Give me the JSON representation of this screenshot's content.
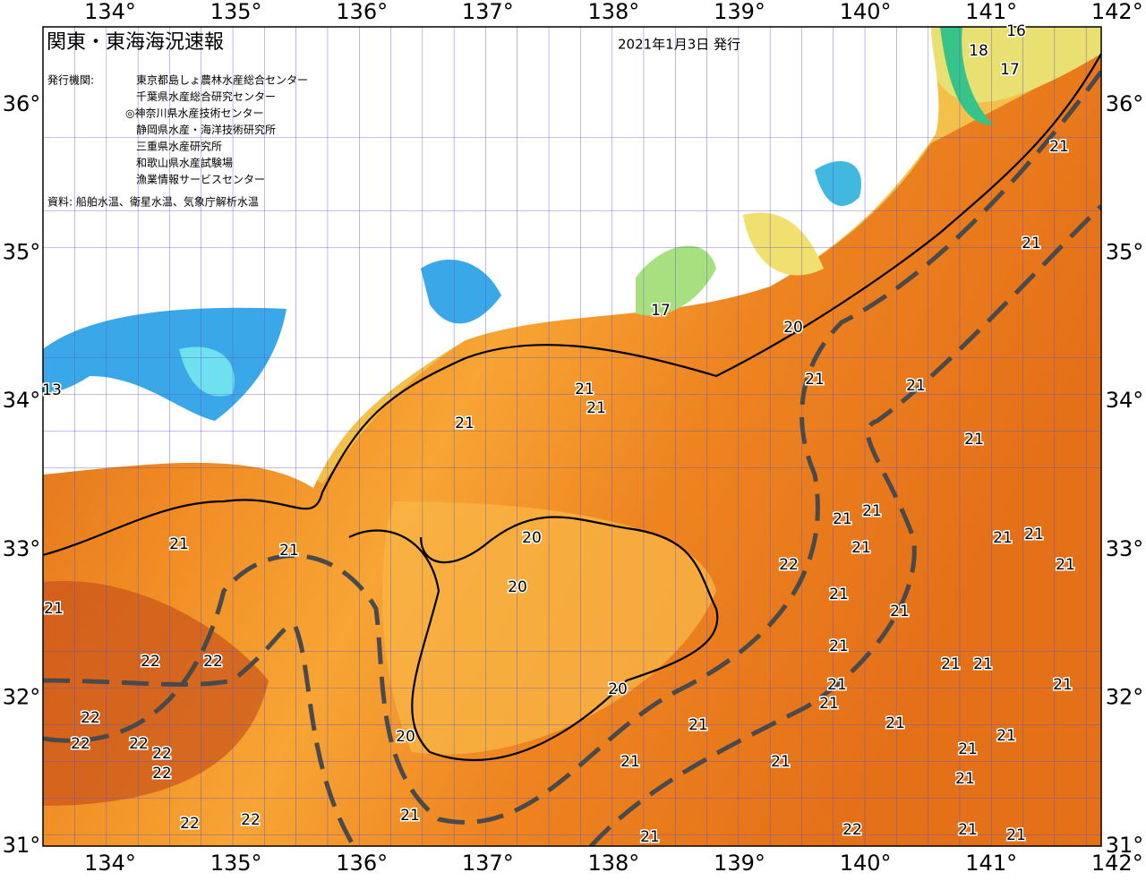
{
  "header": {
    "title": "関東・東海海況速報",
    "date": "2021年1月3日 発行"
  },
  "issuers": {
    "label": "発行機関:",
    "names": [
      "東京都島しょ農林水産総合センター",
      "千葉県水産総合研究センター",
      "◎神奈川県水産技術センター",
      "静岡県水産・海洋技術研究所",
      "三重県水産研究所",
      "和歌山県水産試験場",
      "漁業情報サービスセンター"
    ]
  },
  "source": "資料: 船舶水温、衛星水温、気象庁解析水温",
  "longitude_labels": [
    "134°",
    "135°",
    "136°",
    "137°",
    "138°",
    "139°",
    "140°",
    "141°",
    "142°"
  ],
  "latitude_labels": [
    "36°",
    "35°",
    "34°",
    "33°",
    "32°",
    "31°"
  ],
  "contour_labels": [
    "16",
    "18",
    "17",
    "21",
    "21",
    "17",
    "20",
    "21",
    "21",
    "21",
    "21",
    "21",
    "13",
    "21",
    "21",
    "21",
    "21",
    "21",
    "20",
    "21",
    "21",
    "21",
    "22",
    "21",
    "20",
    "21",
    "21",
    "21",
    "22",
    "22",
    "21",
    "21",
    "21",
    "21",
    "20",
    "21",
    "21",
    "22",
    "21",
    "21",
    "22",
    "22",
    "22",
    "21",
    "20",
    "22",
    "21",
    "21",
    "21",
    "21",
    "21",
    "22",
    "22",
    "22",
    "21",
    "21",
    "21"
  ]
}
